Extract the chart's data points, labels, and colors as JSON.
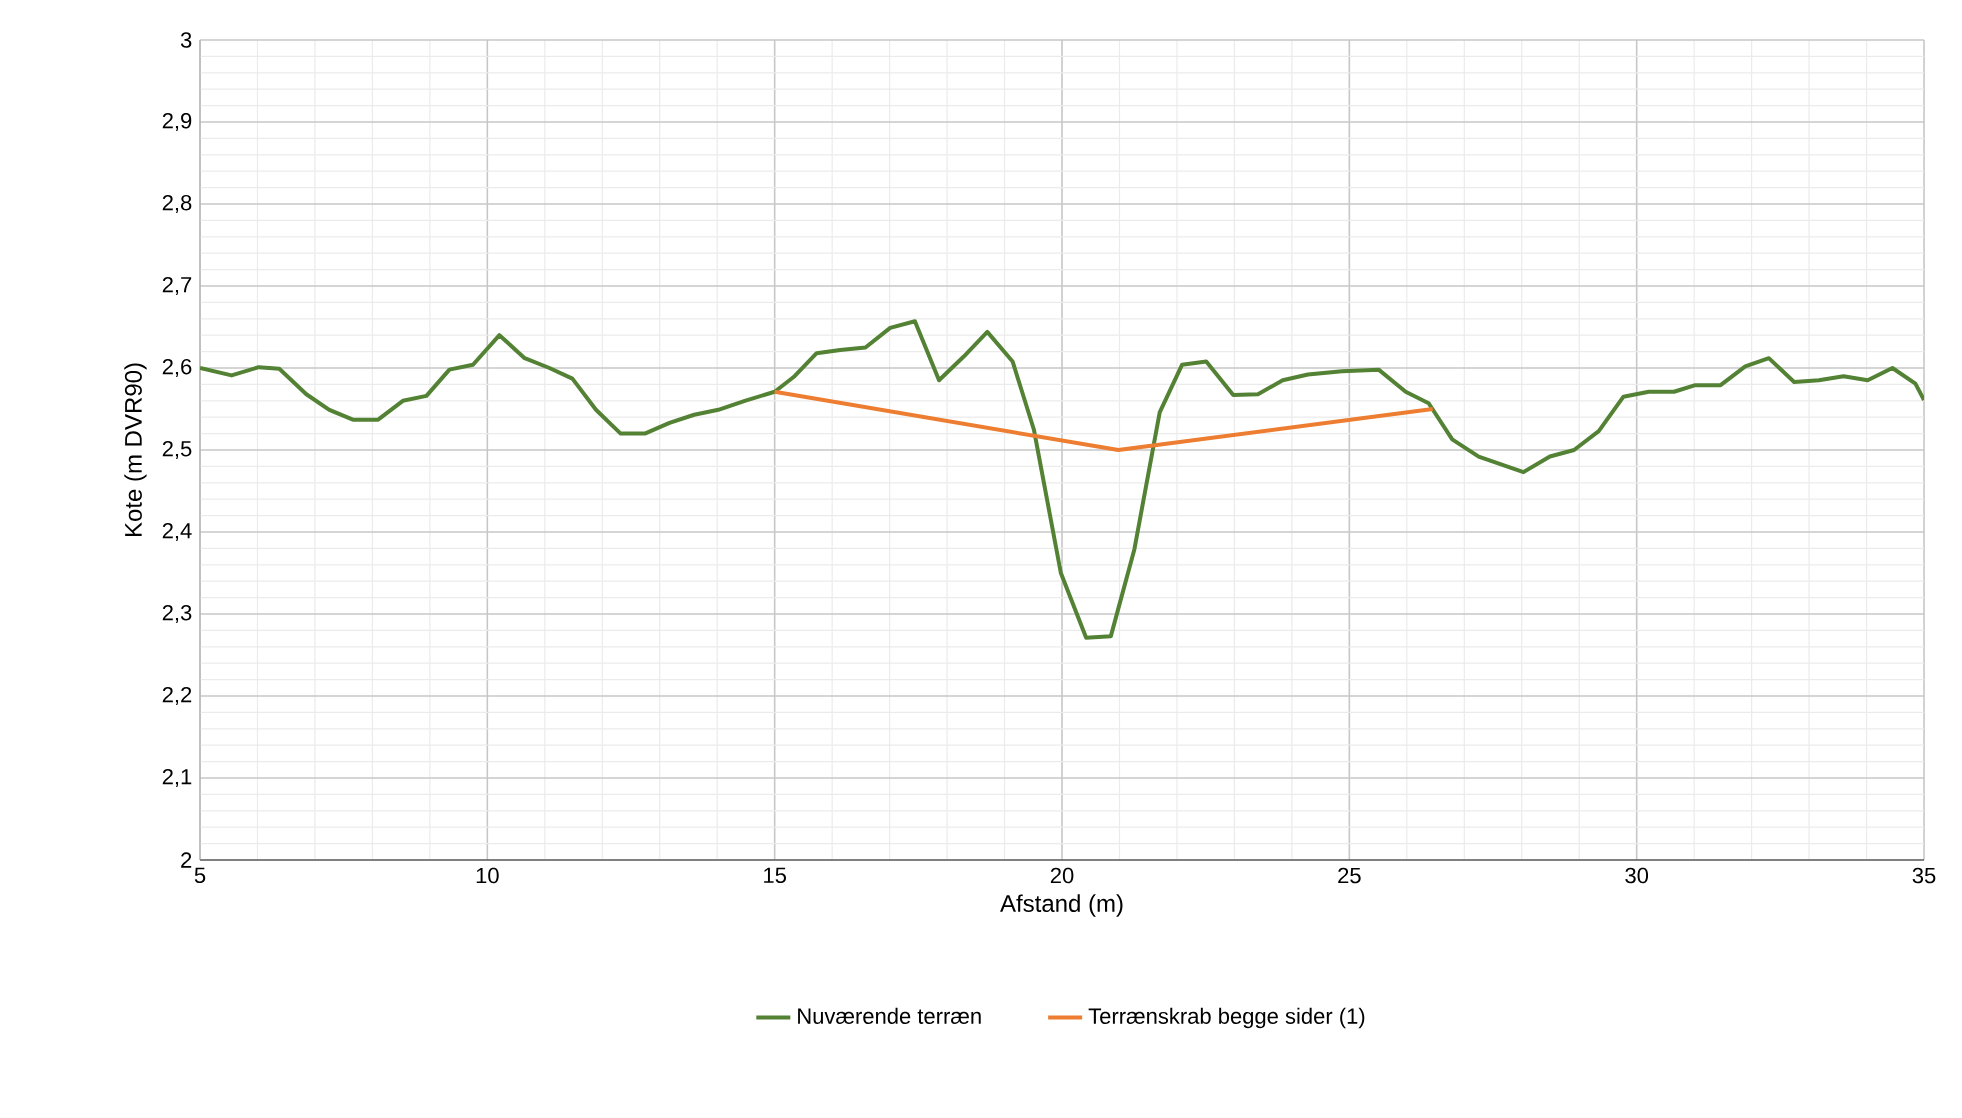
{
  "chart_data": {
    "type": "line",
    "xlabel": "Afstand (m)",
    "ylabel": "Kote (m DVR90)",
    "xlim": [
      5,
      35
    ],
    "ylim": [
      2,
      3
    ],
    "xticks": [
      5,
      10,
      15,
      20,
      25,
      30,
      35
    ],
    "yticks": [
      2,
      {
        "value": 2.1,
        "label": "2,1"
      },
      {
        "value": 2.2,
        "label": "2,2"
      },
      {
        "value": 2.3,
        "label": "2,3"
      },
      {
        "value": 2.4,
        "label": "2,4"
      },
      {
        "value": 2.5,
        "label": "2,5"
      },
      {
        "value": 2.6,
        "label": "2,6"
      },
      {
        "value": 2.7,
        "label": "2,7"
      },
      {
        "value": 2.8,
        "label": "2,8"
      },
      {
        "value": 2.9,
        "label": "2,9"
      },
      3
    ],
    "grid": true,
    "legend": "bottom",
    "marker": "none",
    "line_style": "solid",
    "series": [
      {
        "name": "Nuværende terræn",
        "color": "#548235",
        "x": [
          5,
          5.55,
          6.02,
          6.38,
          6.85,
          7.25,
          7.66,
          8.1,
          8.53,
          8.94,
          9.34,
          9.75,
          10.21,
          10.65,
          11.08,
          11.48,
          11.89,
          12.32,
          12.74,
          13.17,
          13.6,
          14.02,
          14.48,
          15,
          15.33,
          15.73,
          16.14,
          16.58,
          17.01,
          17.44,
          17.86,
          18.29,
          18.7,
          19.14,
          19.51,
          19.98,
          20.42,
          20.85,
          21.26,
          21.7,
          22.09,
          22.51,
          22.98,
          23.41,
          23.84,
          24.28,
          24.87,
          25.51,
          25.98,
          26.38,
          26.79,
          27.25,
          28.03,
          28.49,
          28.91,
          29.34,
          29.77,
          30.21,
          30.65,
          31.02,
          31.46,
          31.89,
          32.3,
          32.74,
          33.17,
          33.6,
          34.02,
          34.45,
          34.85,
          35
        ],
        "values": [
          2.6,
          2.591,
          2.601,
          2.599,
          2.568,
          2.549,
          2.537,
          2.537,
          2.56,
          2.566,
          2.598,
          2.604,
          2.64,
          2.612,
          2.6,
          2.587,
          2.549,
          2.52,
          2.52,
          2.533,
          2.543,
          2.549,
          2.56,
          2.571,
          2.589,
          2.618,
          2.622,
          2.625,
          2.649,
          2.657,
          2.585,
          2.614,
          2.644,
          2.608,
          2.525,
          2.35,
          2.271,
          2.273,
          2.379,
          2.546,
          2.604,
          2.608,
          2.567,
          2.568,
          2.585,
          2.592,
          2.596,
          2.598,
          2.571,
          2.557,
          2.513,
          2.492,
          2.473,
          2.492,
          2.5,
          2.523,
          2.565,
          2.571,
          2.571,
          2.579,
          2.579,
          2.602,
          2.612,
          2.583,
          2.585,
          2.59,
          2.585,
          2.6,
          2.581,
          2.561
        ]
      },
      {
        "name": "Terrænskrab begge sider (1)",
        "color": "#ed7d31",
        "x": [
          15,
          20.98,
          26.45
        ],
        "values": [
          2.571,
          2.5,
          2.55
        ]
      }
    ]
  }
}
